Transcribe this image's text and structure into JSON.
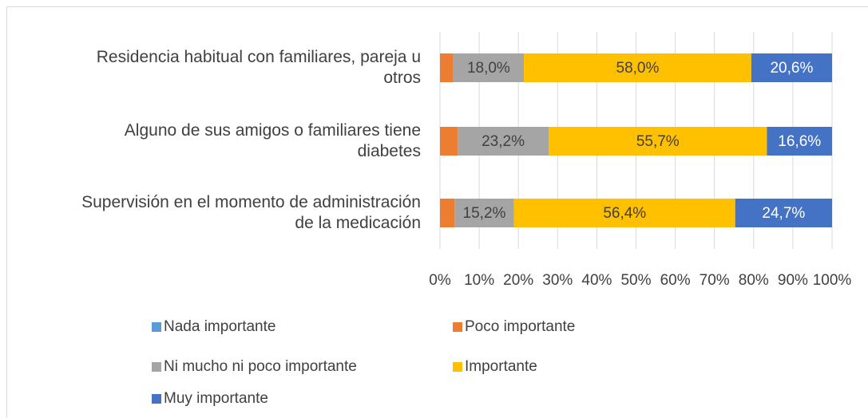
{
  "chart_data": {
    "type": "stacked_bar_horizontal",
    "categories": [
      "Residencia habitual con familiares, pareja u otros",
      "Alguno de sus amigos o familiares tiene diabetes",
      "Supervisión en el momento de administración de la medicación"
    ],
    "series": [
      {
        "name": "Nada importante",
        "color": "#5b9bd5",
        "values": [
          0,
          0,
          0
        ]
      },
      {
        "name": "Poco importante",
        "color": "#ed7d31",
        "values": [
          3.4,
          4.5,
          3.7
        ]
      },
      {
        "name": "Ni mucho ni poco importante",
        "color": "#a5a5a5",
        "values": [
          18.0,
          23.2,
          15.2
        ],
        "value_labels": [
          "18,0%",
          "23,2%",
          "15,2%"
        ]
      },
      {
        "name": "Importante",
        "color": "#ffc000",
        "values": [
          58.0,
          55.7,
          56.4
        ],
        "value_labels": [
          "58,0%",
          "55,7%",
          "56,4%"
        ]
      },
      {
        "name": "Muy importante",
        "color": "#4472c4",
        "values": [
          20.6,
          16.6,
          24.7
        ],
        "value_labels": [
          "20,6%",
          "16,6%",
          "24,7%"
        ]
      }
    ],
    "xlim": [
      0,
      100
    ],
    "xticks": [
      {
        "value": 0,
        "label": "0%"
      },
      {
        "value": 10,
        "label": "10%"
      },
      {
        "value": 20,
        "label": "20%"
      },
      {
        "value": 30,
        "label": "30%"
      },
      {
        "value": 40,
        "label": "40%"
      },
      {
        "value": 50,
        "label": "50%"
      },
      {
        "value": 60,
        "label": "60%"
      },
      {
        "value": 70,
        "label": "70%"
      },
      {
        "value": 80,
        "label": "80%"
      },
      {
        "value": 90,
        "label": "90%"
      },
      {
        "value": 100,
        "label": "100%"
      }
    ],
    "grid": true,
    "legend": "bottom"
  }
}
